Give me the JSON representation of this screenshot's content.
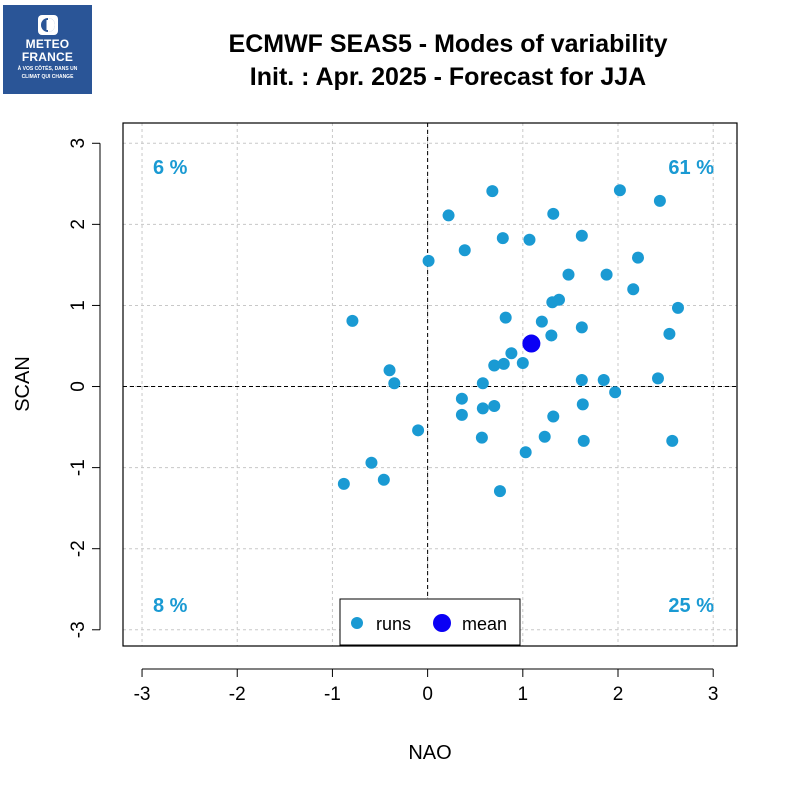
{
  "logo": {
    "line1": "METEO",
    "line2": "FRANCE",
    "tagline1": "À VOS CÔTÉS, DANS UN",
    "tagline2": "CLIMAT QUI CHANGE",
    "color": "#2a5597"
  },
  "header": {
    "title_line1": "ECMWF SEAS5 - Modes of variability",
    "title_line2": "Init. : Apr. 2025 - Forecast for JJA"
  },
  "colors": {
    "runs": "#1a9ad3",
    "mean": "#0a00f5",
    "grid": "#c8c8c8"
  },
  "chart_data": {
    "type": "scatter",
    "xlabel": "NAO",
    "ylabel": "SCAN",
    "xlim": [
      -3.2,
      3.25
    ],
    "ylim": [
      -3.2,
      3.25
    ],
    "xticks": [
      -3,
      -2,
      -1,
      0,
      1,
      2,
      3
    ],
    "yticks": [
      -3,
      -2,
      -1,
      0,
      1,
      2,
      3
    ],
    "grid": true,
    "quadrant_labels": {
      "top_left": "6 %",
      "top_right": "61 %",
      "bottom_left": "8 %",
      "bottom_right": "25 %"
    },
    "legend": {
      "position": "bottom-center",
      "entries": [
        "runs",
        "mean"
      ]
    },
    "series": [
      {
        "name": "runs",
        "points": [
          [
            0.68,
            2.41
          ],
          [
            0.22,
            2.11
          ],
          [
            1.32,
            2.13
          ],
          [
            2.02,
            2.42
          ],
          [
            2.44,
            2.29
          ],
          [
            0.39,
            1.68
          ],
          [
            0.79,
            1.83
          ],
          [
            1.07,
            1.81
          ],
          [
            1.62,
            1.86
          ],
          [
            2.21,
            1.59
          ],
          [
            0.01,
            1.55
          ],
          [
            1.48,
            1.38
          ],
          [
            1.88,
            1.38
          ],
          [
            2.16,
            1.2
          ],
          [
            1.31,
            1.04
          ],
          [
            1.38,
            1.07
          ],
          [
            2.63,
            0.97
          ],
          [
            -0.79,
            0.81
          ],
          [
            0.82,
            0.85
          ],
          [
            1.2,
            0.8
          ],
          [
            1.3,
            0.63
          ],
          [
            1.62,
            0.73
          ],
          [
            2.54,
            0.65
          ],
          [
            0.88,
            0.41
          ],
          [
            0.7,
            0.26
          ],
          [
            0.8,
            0.28
          ],
          [
            1.0,
            0.29
          ],
          [
            -0.4,
            0.2
          ],
          [
            -0.35,
            0.04
          ],
          [
            0.58,
            0.04
          ],
          [
            1.62,
            0.08
          ],
          [
            1.85,
            0.08
          ],
          [
            2.42,
            0.1
          ],
          [
            1.97,
            -0.07
          ],
          [
            0.36,
            -0.15
          ],
          [
            0.58,
            -0.27
          ],
          [
            0.7,
            -0.24
          ],
          [
            1.63,
            -0.22
          ],
          [
            0.36,
            -0.35
          ],
          [
            1.32,
            -0.37
          ],
          [
            -0.1,
            -0.54
          ],
          [
            0.57,
            -0.63
          ],
          [
            1.23,
            -0.62
          ],
          [
            1.64,
            -0.67
          ],
          [
            2.57,
            -0.67
          ],
          [
            1.03,
            -0.81
          ],
          [
            -0.59,
            -0.94
          ],
          [
            -0.46,
            -1.15
          ],
          [
            -0.88,
            -1.2
          ],
          [
            0.76,
            -1.29
          ]
        ]
      },
      {
        "name": "mean",
        "points": [
          [
            1.09,
            0.53
          ]
        ]
      }
    ]
  }
}
